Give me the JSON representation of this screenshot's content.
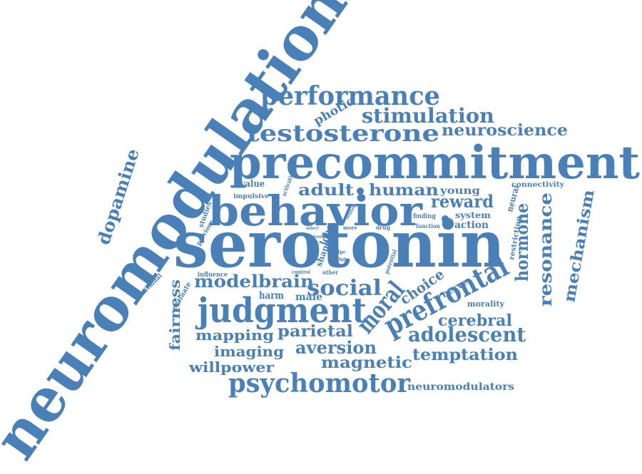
{
  "colors": {
    "word": "#4a80b8",
    "background": "#ffffff"
  },
  "words": [
    {
      "id": "neuromodulation",
      "text": "neuromodulation"
    },
    {
      "id": "precommitment",
      "text": "precommitment"
    },
    {
      "id": "serotonin",
      "text": "serotonin"
    },
    {
      "id": "behavior",
      "text": "behavior"
    },
    {
      "id": "judgment",
      "text": "judgment"
    },
    {
      "id": "testosterone",
      "text": "testosterone"
    },
    {
      "id": "performance",
      "text": "performance"
    },
    {
      "id": "stimulation",
      "text": "stimulation"
    },
    {
      "id": "psychomotor",
      "text": "psychomotor"
    },
    {
      "id": "prefrontal",
      "text": "prefrontal"
    },
    {
      "id": "dopamine",
      "text": "dopamine"
    },
    {
      "id": "neuroscience",
      "text": "neuroscience"
    },
    {
      "id": "adolescent",
      "text": "adolescent"
    },
    {
      "id": "social",
      "text": "social"
    },
    {
      "id": "reward",
      "text": "reward"
    },
    {
      "id": "adult",
      "text": "adult"
    },
    {
      "id": "human",
      "text": "human"
    },
    {
      "id": "modelbrain",
      "text": "modelbrain"
    },
    {
      "id": "moral",
      "text": "moral"
    },
    {
      "id": "hormone",
      "text": "hormone"
    },
    {
      "id": "resonance",
      "text": "resonance"
    },
    {
      "id": "mechanism",
      "text": "mechanism"
    },
    {
      "id": "aversion",
      "text": "aversion"
    },
    {
      "id": "magnetic",
      "text": "magnetic"
    },
    {
      "id": "temptation",
      "text": "temptation"
    },
    {
      "id": "cerebral",
      "text": "cerebral"
    },
    {
      "id": "parietal",
      "text": "parietal"
    },
    {
      "id": "mapping",
      "text": "mapping"
    },
    {
      "id": "imaging",
      "text": "imaging"
    },
    {
      "id": "willpower",
      "text": "willpower"
    },
    {
      "id": "fairness",
      "text": "fairness"
    },
    {
      "id": "choice",
      "text": "choice"
    },
    {
      "id": "photic",
      "text": "photic"
    },
    {
      "id": "young",
      "text": "young"
    },
    {
      "id": "neuromodulators",
      "text": "neuromodulators"
    },
    {
      "id": "connectivity",
      "text": "connectivity"
    },
    {
      "id": "action",
      "text": "action"
    },
    {
      "id": "system",
      "text": "system"
    },
    {
      "id": "neural",
      "text": "neural"
    },
    {
      "id": "restricting",
      "text": "restricting"
    },
    {
      "id": "nerve",
      "text": "nerve"
    },
    {
      "id": "morality",
      "text": "morality"
    },
    {
      "id": "harm",
      "text": "harm"
    },
    {
      "id": "male",
      "text": "male"
    },
    {
      "id": "value",
      "text": "value"
    },
    {
      "id": "impulsive",
      "text": "impulsive"
    },
    {
      "id": "activation",
      "text": "activation"
    },
    {
      "id": "studies",
      "text": "studies"
    },
    {
      "id": "previous",
      "text": "previous"
    },
    {
      "id": "lobe",
      "text": "lobe"
    },
    {
      "id": "shape",
      "text": "shape"
    },
    {
      "id": "influence",
      "text": "influence"
    },
    {
      "id": "evaluate",
      "text": "evaluate"
    },
    {
      "id": "individual",
      "text": "individual"
    },
    {
      "id": "finding",
      "text": "finding"
    },
    {
      "id": "function",
      "text": "function"
    },
    {
      "id": "related",
      "text": "related"
    },
    {
      "id": "drug",
      "text": "drug"
    },
    {
      "id": "more",
      "text": "more"
    },
    {
      "id": "select",
      "text": "select"
    },
    {
      "id": "tool",
      "text": "tool"
    },
    {
      "id": "control",
      "text": "control"
    },
    {
      "id": "other",
      "text": "other"
    },
    {
      "id": "potential",
      "text": "potential"
    },
    {
      "id": "lfpc",
      "text": "lfpc"
    },
    {
      "id": "dlpfc",
      "text": "dlpfc"
    }
  ]
}
